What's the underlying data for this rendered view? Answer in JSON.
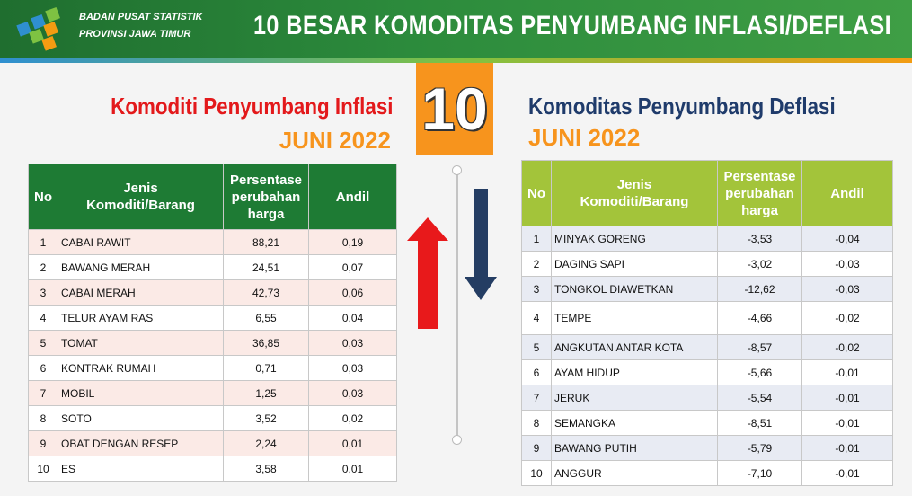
{
  "org": {
    "line1": "BADAN PUSAT STATISTIK",
    "line2": "PROVINSI JAWA TIMUR"
  },
  "title": "10 BESAR KOMODITAS PENYUMBANG INFLASI/DEFLASI",
  "badge": "10",
  "colors": {
    "header": "#2c8b3c",
    "badge": "#f7941d",
    "inflasi_title": "#e3191b",
    "deflasi_title": "#1f3b6b",
    "inflasi_header": "#1e7b34",
    "deflasi_header": "#a3c43a",
    "arrow_up": "#e8191b",
    "arrow_down": "#243d63"
  },
  "inflasi": {
    "title": "Komoditi Penyumbang Inflasi",
    "month": "JUNI 2022",
    "headers": {
      "no": "No",
      "jenis1": "Jenis",
      "jenis2": "Komoditi/Barang",
      "pers1": "Persentase",
      "pers2": "perubahan",
      "pers3": "harga",
      "andil": "Andil"
    },
    "rows": [
      {
        "no": "1",
        "name": "CABAI RAWIT",
        "pct": "88,21",
        "andil": "0,19"
      },
      {
        "no": "2",
        "name": "BAWANG MERAH",
        "pct": "24,51",
        "andil": "0,07"
      },
      {
        "no": "3",
        "name": "CABAI MERAH",
        "pct": "42,73",
        "andil": "0,06"
      },
      {
        "no": "4",
        "name": "TELUR AYAM RAS",
        "pct": "6,55",
        "andil": "0,04"
      },
      {
        "no": "5",
        "name": "TOMAT",
        "pct": "36,85",
        "andil": "0,03"
      },
      {
        "no": "6",
        "name": "KONTRAK RUMAH",
        "pct": "0,71",
        "andil": "0,03"
      },
      {
        "no": "7",
        "name": "MOBIL",
        "pct": "1,25",
        "andil": "0,03"
      },
      {
        "no": "8",
        "name": "SOTO",
        "pct": "3,52",
        "andil": "0,02"
      },
      {
        "no": "9",
        "name": "OBAT DENGAN RESEP",
        "pct": "2,24",
        "andil": "0,01"
      },
      {
        "no": "10",
        "name": "ES",
        "pct": "3,58",
        "andil": "0,01"
      }
    ]
  },
  "deflasi": {
    "title": "Komoditas Penyumbang Deflasi",
    "month": "JUNI 2022",
    "headers": {
      "no": "No",
      "jenis1": "Jenis",
      "jenis2": "Komoditi/Barang",
      "pers1": "Persentase",
      "pers2": "perubahan",
      "pers3": "harga",
      "andil": "Andil"
    },
    "rows": [
      {
        "no": "1",
        "name": "MINYAK GORENG",
        "pct": "-3,53",
        "andil": "-0,04"
      },
      {
        "no": "2",
        "name": "DAGING SAPI",
        "pct": "-3,02",
        "andil": "-0,03"
      },
      {
        "no": "3",
        "name": "TONGKOL DIAWETKAN",
        "pct": "-12,62",
        "andil": "-0,03"
      },
      {
        "no": "4",
        "name": "TEMPE",
        "pct": "-4,66",
        "andil": "-0,02"
      },
      {
        "no": "5",
        "name": "ANGKUTAN ANTAR KOTA",
        "pct": "-8,57",
        "andil": "-0,02"
      },
      {
        "no": "6",
        "name": "AYAM HIDUP",
        "pct": "-5,66",
        "andil": "-0,01"
      },
      {
        "no": "7",
        "name": "JERUK",
        "pct": "-5,54",
        "andil": "-0,01"
      },
      {
        "no": "8",
        "name": "SEMANGKA",
        "pct": "-8,51",
        "andil": "-0,01"
      },
      {
        "no": "9",
        "name": "BAWANG PUTIH",
        "pct": "-5,79",
        "andil": "-0,01"
      },
      {
        "no": "10",
        "name": "ANGGUR",
        "pct": "-7,10",
        "andil": "-0,01"
      }
    ]
  }
}
